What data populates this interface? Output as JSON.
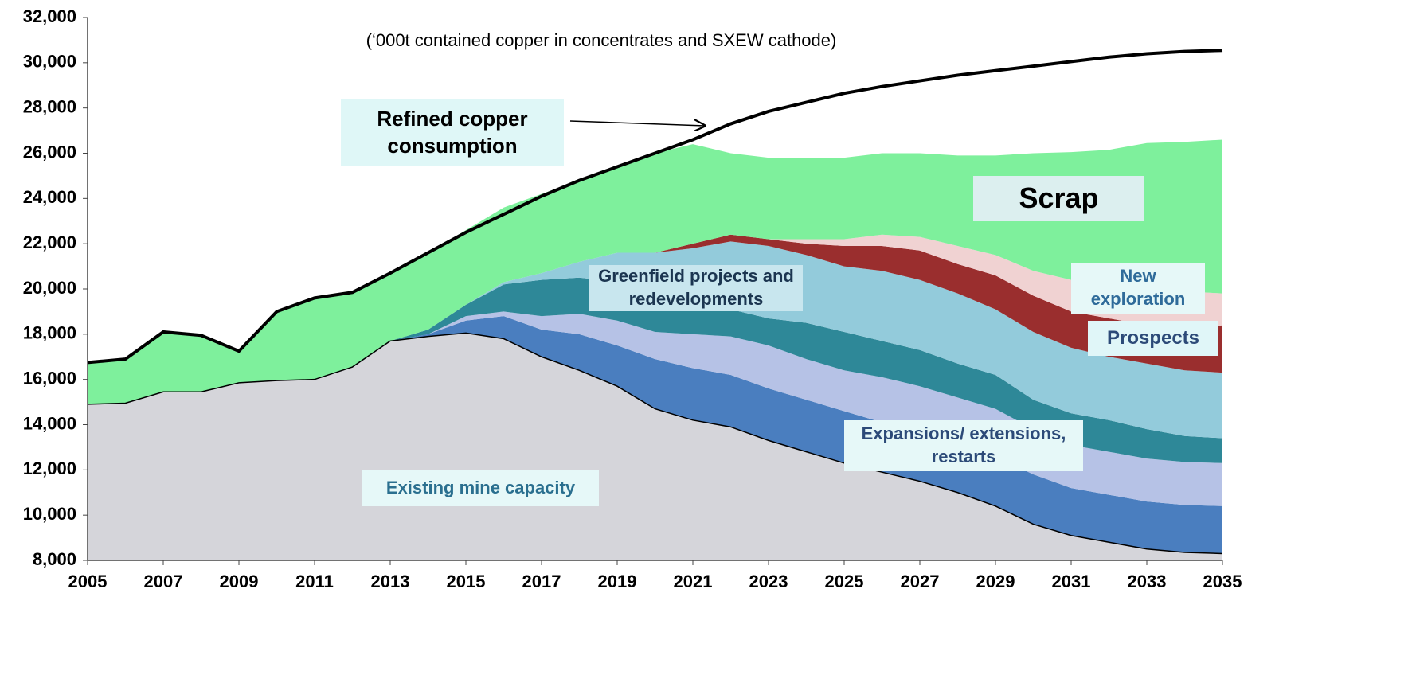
{
  "chart_data": {
    "type": "area",
    "subtitle": "(‘000t contained copper in concentrates and SXEW cathode)",
    "x": [
      2005,
      2006,
      2007,
      2008,
      2009,
      2010,
      2011,
      2012,
      2013,
      2014,
      2015,
      2016,
      2017,
      2018,
      2019,
      2020,
      2021,
      2022,
      2023,
      2024,
      2025,
      2026,
      2027,
      2028,
      2029,
      2030,
      2031,
      2032,
      2033,
      2034,
      2035
    ],
    "xlim": [
      2005,
      2035
    ],
    "xticks": [
      2005,
      2007,
      2009,
      2011,
      2013,
      2015,
      2017,
      2019,
      2021,
      2023,
      2025,
      2027,
      2029,
      2031,
      2033,
      2035
    ],
    "ylim": [
      8000,
      32000
    ],
    "yticks": [
      {
        "value": 8000,
        "label": "8,000"
      },
      {
        "value": 10000,
        "label": "10,000"
      },
      {
        "value": 12000,
        "label": "12,000"
      },
      {
        "value": 14000,
        "label": "14,000"
      },
      {
        "value": 16000,
        "label": "16,000"
      },
      {
        "value": 18000,
        "label": "18,000"
      },
      {
        "value": 20000,
        "label": "20,000"
      },
      {
        "value": 22000,
        "label": "22,000"
      },
      {
        "value": 24000,
        "label": "24,000"
      },
      {
        "value": 26000,
        "label": "26,000"
      },
      {
        "value": 28000,
        "label": "28,000"
      },
      {
        "value": 30000,
        "label": "30,000"
      },
      {
        "value": 32000,
        "label": "32,000"
      }
    ],
    "series": [
      {
        "name": "Existing mine capacity",
        "color": "#d5d5da",
        "values": [
          14900,
          14950,
          15450,
          15450,
          15850,
          15950,
          16000,
          16550,
          17700,
          17900,
          18050,
          17800,
          17000,
          16400,
          15700,
          14700,
          14200,
          13900,
          13300,
          12800,
          12300,
          11900,
          11500,
          11000,
          10400,
          9600,
          9100,
          8800,
          8500,
          8350,
          8300
        ]
      },
      {
        "name": "Expansions/ extensions, restarts",
        "color": "#4a7ebf",
        "values": [
          0,
          0,
          0,
          0,
          0,
          0,
          0,
          0,
          0,
          100,
          550,
          1000,
          1200,
          1600,
          1800,
          2200,
          2300,
          2300,
          2300,
          2300,
          2300,
          2200,
          2200,
          2200,
          2200,
          2200,
          2100,
          2100,
          2100,
          2100,
          2100
        ]
      },
      {
        "color": "#b6c2e6",
        "values": [
          0,
          0,
          0,
          0,
          0,
          0,
          0,
          0,
          0,
          0,
          200,
          200,
          600,
          900,
          1100,
          1200,
          1500,
          1700,
          1900,
          1800,
          1800,
          2000,
          2000,
          2000,
          2100,
          2000,
          1900,
          1900,
          1900,
          1900,
          1900
        ]
      },
      {
        "name": "Greenfield projects and redevelopments",
        "color": "#2e8898",
        "values": [
          0,
          0,
          0,
          0,
          0,
          0,
          0,
          0,
          0,
          200,
          500,
          1200,
          1600,
          1600,
          1700,
          1500,
          1100,
          1200,
          1200,
          1600,
          1700,
          1600,
          1600,
          1500,
          1500,
          1300,
          1400,
          1400,
          1300,
          1150,
          1100
        ]
      },
      {
        "color": "#93cbdb",
        "values": [
          0,
          0,
          0,
          0,
          0,
          0,
          0,
          0,
          0,
          0,
          0,
          100,
          300,
          700,
          1300,
          2000,
          2700,
          3000,
          3200,
          3000,
          2900,
          3100,
          3100,
          3100,
          2900,
          3000,
          2900,
          2800,
          2900,
          2900,
          2900
        ]
      },
      {
        "name": "Prospects",
        "color": "#9a2e2e",
        "values": [
          0,
          0,
          0,
          0,
          0,
          0,
          0,
          0,
          0,
          0,
          0,
          0,
          0,
          0,
          0,
          0,
          200,
          300,
          300,
          500,
          900,
          1100,
          1300,
          1300,
          1500,
          1600,
          1600,
          1700,
          1700,
          1700,
          2100
        ]
      },
      {
        "name": "New exploration",
        "color": "#f0d2d2",
        "values": [
          0,
          0,
          0,
          0,
          0,
          0,
          0,
          0,
          0,
          0,
          0,
          0,
          0,
          0,
          0,
          0,
          0,
          0,
          0,
          200,
          300,
          500,
          600,
          800,
          900,
          1100,
          1400,
          1500,
          1600,
          1800,
          1400
        ]
      },
      {
        "name": "Scrap",
        "color": "#7ef09c",
        "values": [
          1850,
          1950,
          2650,
          2500,
          1400,
          3050,
          3600,
          3300,
          3000,
          3400,
          3300,
          3300,
          3500,
          3600,
          3800,
          4400,
          4400,
          3600,
          3600,
          3600,
          3600,
          3600,
          3700,
          4000,
          4400,
          5200,
          5650,
          5950,
          6450,
          6600,
          6800
        ]
      },
      {
        "name": "Refined copper consumption",
        "type": "line",
        "color": "#000000",
        "values": [
          16750,
          16900,
          18100,
          17950,
          17250,
          19000,
          19600,
          19850,
          20700,
          21600,
          22500,
          23300,
          24100,
          24800,
          25400,
          26000,
          26600,
          27300,
          27850,
          28250,
          28650,
          28950,
          29200,
          29450,
          29650,
          29850,
          30050,
          30250,
          30400,
          30500,
          30550
        ]
      }
    ]
  }
}
